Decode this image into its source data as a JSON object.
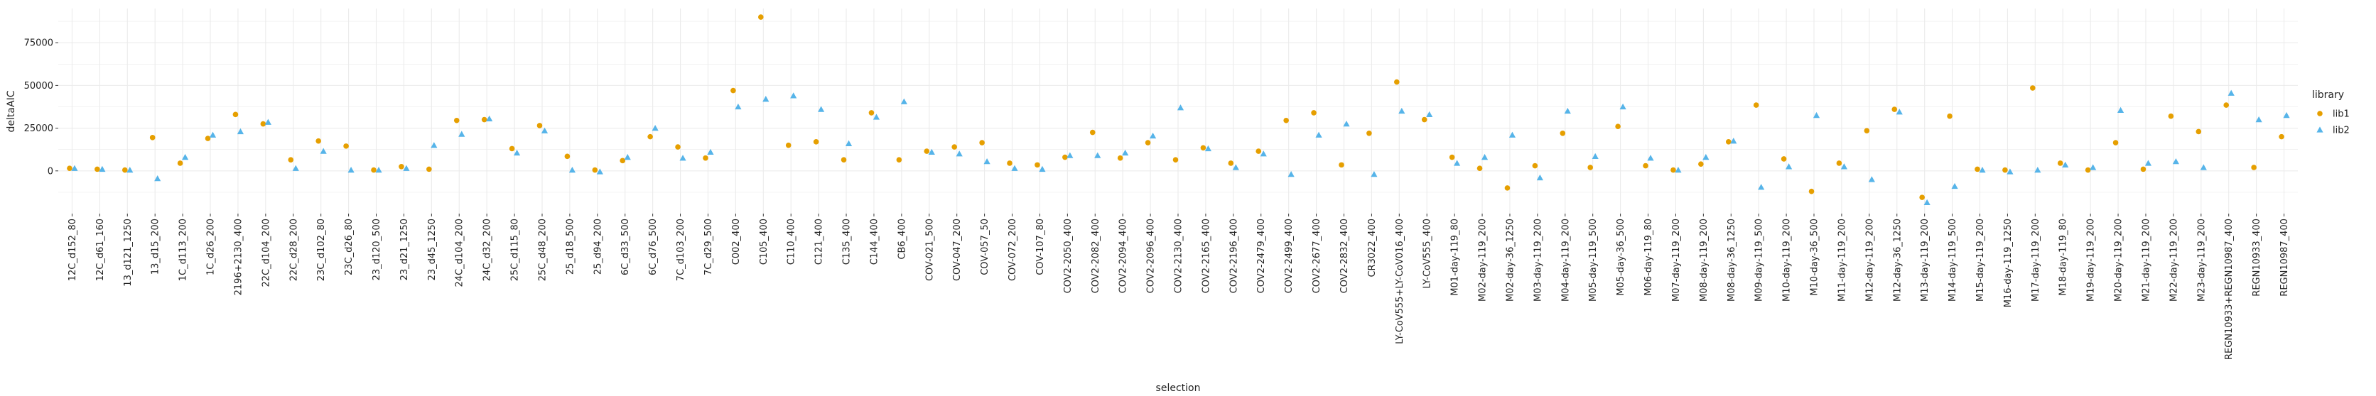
{
  "chart_data": {
    "type": "scatter",
    "title": "",
    "xlabel": "selection",
    "ylabel": "deltaAIC",
    "ylim": [
      -25000,
      95000
    ],
    "yticks": [
      0,
      25000,
      50000,
      75000
    ],
    "grid": true,
    "legend": {
      "title": "library",
      "position": "right"
    },
    "colors": {
      "lib1": "#e69f00",
      "lib2": "#56b4e9",
      "grid": "#ebebeb",
      "panel": "#ffffff"
    },
    "markers": {
      "lib1": "circle",
      "lib2": "triangle"
    },
    "categories": [
      "12C_d152_80",
      "12C_d61_160",
      "13_d121_1250",
      "13_d15_200",
      "1C_d113_200",
      "1C_d26_200",
      "2196+2130_400",
      "22C_d104_200",
      "22C_d28_200",
      "23C_d102_80",
      "23C_d26_80",
      "23_d120_500",
      "23_d21_1250",
      "23_d45_1250",
      "24C_d104_200",
      "24C_d32_200",
      "25C_d115_80",
      "25C_d48_200",
      "25_d18_500",
      "25_d94_200",
      "6C_d33_500",
      "6C_d76_500",
      "7C_d103_200",
      "7C_d29_500",
      "C002_400",
      "C105_400",
      "C110_400",
      "C121_400",
      "C135_400",
      "C144_400",
      "CB6_400",
      "COV-021_500",
      "COV-047_200",
      "COV-057_50",
      "COV-072_200",
      "COV-107_80",
      "COV2-2050_400",
      "COV2-2082_400",
      "COV2-2094_400",
      "COV2-2096_400",
      "COV2-2130_400",
      "COV2-2165_400",
      "COV2-2196_400",
      "COV2-2479_400",
      "COV2-2499_400",
      "COV2-2677_400",
      "COV2-2832_400",
      "CR3022_400",
      "LY-CoV555+LY-CoV016_400",
      "LY-CoV555_400",
      "M01-day-119_80",
      "M02-day-119_200",
      "M02-day-36_1250",
      "M03-day-119_200",
      "M04-day-119_200",
      "M05-day-119_500",
      "M05-day-36_500",
      "M06-day-119_80",
      "M07-day-119_200",
      "M08-day-119_200",
      "M08-day-36_1250",
      "M09-day-119_500",
      "M10-day-119_200",
      "M10-day-36_500",
      "M11-day-119_200",
      "M12-day-119_200",
      "M12-day-36_1250",
      "M13-day-119_200",
      "M14-day-119_500",
      "M15-day-119_200",
      "M16-day-119_1250",
      "M17-day-119_200",
      "M18-day-119_80",
      "M19-day-119_200",
      "M20-day-119_200",
      "M21-day-119_200",
      "M22-day-119_200",
      "M23-day-119_200",
      "REGN10933+REGN10987_400",
      "REGN10933_400",
      "REGN10987_400"
    ],
    "series": [
      {
        "name": "lib1",
        "values": [
          1500,
          1000,
          500,
          19500,
          4500,
          19000,
          33000,
          27500,
          6500,
          17500,
          14500,
          500,
          2500,
          1000,
          29500,
          30000,
          13000,
          26500,
          8500,
          500,
          6000,
          20000,
          14000,
          7500,
          47000,
          90000,
          15000,
          17000,
          6500,
          34000,
          6500,
          11500,
          14000,
          16500,
          4500,
          3500,
          8000,
          22500,
          7500,
          16500,
          6500,
          13500,
          4500,
          11500,
          29500,
          34000,
          3500,
          22000,
          52000,
          30000,
          8000,
          1500,
          -10000,
          3000,
          22000,
          2000,
          26000,
          3000,
          500,
          4000,
          17000,
          38500,
          7000,
          -12000,
          4500,
          23500,
          36000,
          -15500,
          32000,
          1000,
          500,
          48500,
          4500,
          500,
          16500,
          1000,
          32000,
          23000,
          38500,
          2000,
          20000
        ]
      },
      {
        "name": "lib2",
        "values": [
          1500,
          1000,
          500,
          -4500,
          8000,
          21000,
          23000,
          28500,
          1500,
          11500,
          500,
          500,
          1500,
          15000,
          21500,
          30500,
          10500,
          23500,
          500,
          -500,
          8000,
          25000,
          7500,
          11000,
          37500,
          42000,
          44000,
          36000,
          16000,
          31500,
          40500,
          11000,
          10000,
          5500,
          1500,
          1000,
          9000,
          9000,
          10500,
          20500,
          37000,
          13000,
          2000,
          10000,
          -2000,
          21000,
          27500,
          -2000,
          35000,
          33000,
          4500,
          8000,
          21000,
          -4000,
          35000,
          8500,
          37500,
          7500,
          500,
          8000,
          17500,
          -9500,
          2500,
          32500,
          2500,
          -5000,
          34500,
          -18500,
          -9000,
          500,
          -500,
          500,
          3500,
          2000,
          35500,
          4500,
          5500,
          2000,
          45500,
          30000,
          32500
        ]
      }
    ]
  }
}
